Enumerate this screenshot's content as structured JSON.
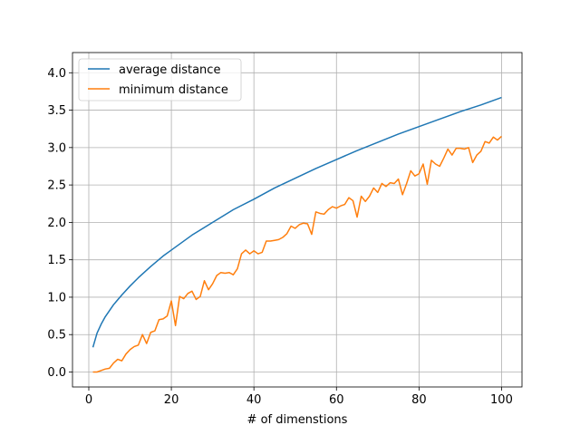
{
  "chart_data": {
    "type": "line",
    "xlabel": "# of dimenstions",
    "ylabel": "",
    "xlim": [
      -3.95,
      104.95
    ],
    "ylim": [
      -0.2,
      4.27
    ],
    "xticks": [
      0,
      20,
      40,
      60,
      80,
      100
    ],
    "yticks": [
      0.0,
      0.5,
      1.0,
      1.5,
      2.0,
      2.5,
      3.0,
      3.5,
      4.0
    ],
    "grid": true,
    "legend_position": "upper-left",
    "series": [
      {
        "name": "average distance",
        "color": "#1f77b4",
        "x": [
          1,
          2,
          3,
          4,
          5,
          6,
          8,
          10,
          12,
          15,
          18,
          20,
          25,
          30,
          35,
          40,
          45,
          50,
          55,
          60,
          65,
          70,
          75,
          80,
          85,
          90,
          95,
          100
        ],
        "y": [
          0.33,
          0.52,
          0.64,
          0.74,
          0.82,
          0.9,
          1.03,
          1.15,
          1.26,
          1.41,
          1.55,
          1.63,
          1.83,
          2.0,
          2.17,
          2.31,
          2.46,
          2.59,
          2.72,
          2.84,
          2.96,
          3.07,
          3.18,
          3.28,
          3.38,
          3.48,
          3.57,
          3.67
        ]
      },
      {
        "name": "minimum distance",
        "color": "#ff7f0e",
        "x": [
          1,
          2,
          3,
          4,
          5,
          6,
          7,
          8,
          9,
          10,
          11,
          12,
          13,
          14,
          15,
          16,
          17,
          18,
          19,
          20,
          21,
          22,
          23,
          24,
          25,
          26,
          27,
          28,
          29,
          30,
          31,
          32,
          33,
          34,
          35,
          36,
          37,
          38,
          39,
          40,
          41,
          42,
          43,
          44,
          45,
          46,
          47,
          48,
          49,
          50,
          51,
          52,
          53,
          54,
          55,
          56,
          57,
          58,
          59,
          60,
          61,
          62,
          63,
          64,
          65,
          66,
          67,
          68,
          69,
          70,
          71,
          72,
          73,
          74,
          75,
          76,
          77,
          78,
          79,
          80,
          81,
          82,
          83,
          84,
          85,
          86,
          87,
          88,
          89,
          90,
          91,
          92,
          93,
          94,
          95,
          96,
          97,
          98,
          99,
          100
        ],
        "y": [
          0.0,
          0.0,
          0.02,
          0.04,
          0.05,
          0.12,
          0.17,
          0.15,
          0.24,
          0.3,
          0.34,
          0.36,
          0.5,
          0.38,
          0.53,
          0.55,
          0.7,
          0.71,
          0.75,
          0.95,
          0.62,
          1.01,
          0.98,
          1.05,
          1.08,
          0.97,
          1.01,
          1.22,
          1.1,
          1.18,
          1.29,
          1.33,
          1.32,
          1.33,
          1.3,
          1.38,
          1.58,
          1.63,
          1.58,
          1.62,
          1.58,
          1.6,
          1.75,
          1.75,
          1.76,
          1.77,
          1.8,
          1.85,
          1.95,
          1.92,
          1.97,
          1.99,
          1.98,
          1.84,
          2.14,
          2.12,
          2.11,
          2.17,
          2.21,
          2.19,
          2.22,
          2.24,
          2.33,
          2.29,
          2.07,
          2.35,
          2.28,
          2.35,
          2.46,
          2.4,
          2.52,
          2.48,
          2.53,
          2.52,
          2.58,
          2.37,
          2.52,
          2.69,
          2.62,
          2.65,
          2.78,
          2.51,
          2.83,
          2.78,
          2.75,
          2.86,
          2.98,
          2.9,
          2.99,
          2.99,
          2.98,
          3.0,
          2.8,
          2.9,
          2.95,
          3.08,
          3.06,
          3.14,
          3.1,
          3.15
        ]
      }
    ]
  }
}
